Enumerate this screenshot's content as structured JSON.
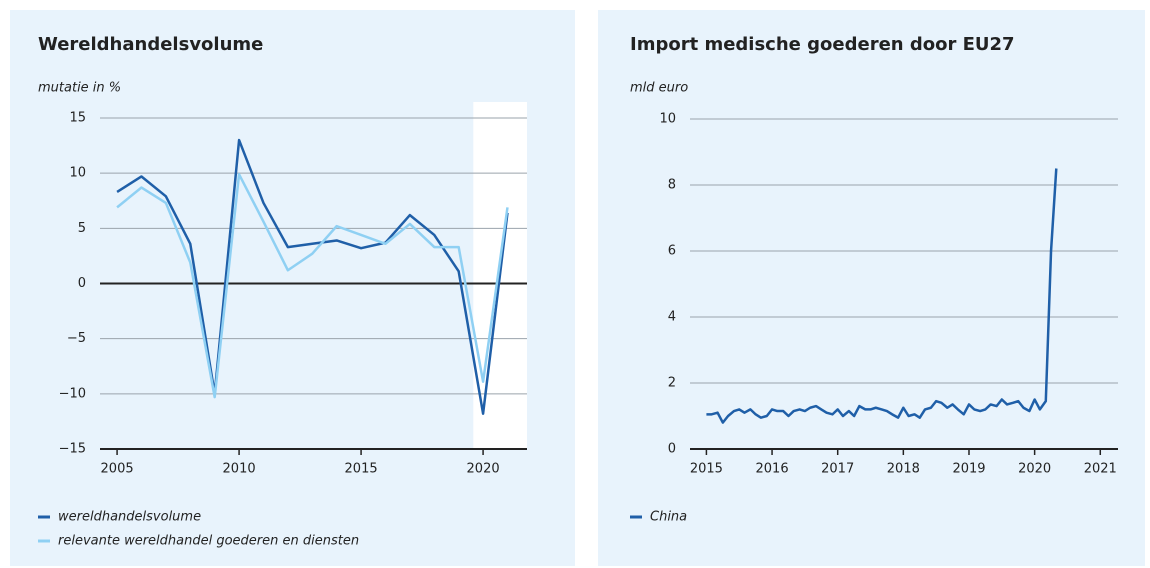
{
  "chart_data": [
    {
      "type": "line",
      "title": "Wereldhandelsvolume",
      "ylabel": "mutatie in %",
      "x": [
        2005,
        2006,
        2007,
        2008,
        2009,
        2010,
        2011,
        2012,
        2013,
        2014,
        2015,
        2016,
        2017,
        2018,
        2019,
        2020,
        2021
      ],
      "series": [
        {
          "name": "wereldhandelsvolume",
          "color": "#1f5fa8",
          "values": [
            8.3,
            9.7,
            7.9,
            3.6,
            -10.0,
            13.0,
            7.3,
            3.3,
            3.6,
            3.9,
            3.2,
            3.7,
            6.2,
            4.4,
            1.1,
            -11.8,
            6.4
          ]
        },
        {
          "name": "relevante wereldhandel goederen en diensten",
          "color": "#8fd0f3",
          "values": [
            6.9,
            8.7,
            7.3,
            1.9,
            -10.3,
            9.9,
            5.6,
            1.2,
            2.7,
            5.2,
            4.4,
            3.6,
            5.4,
            3.3,
            3.3,
            -8.9,
            6.9
          ]
        }
      ],
      "xlim": [
        2004.3,
        2021.8
      ],
      "xticks": [
        2005,
        2010,
        2015,
        2020
      ],
      "ylim": [
        -15,
        15
      ],
      "yticks": [
        {
          "value": -15,
          "label": "−15"
        },
        {
          "value": -10,
          "label": "−10"
        },
        {
          "value": -5,
          "label": "−5"
        },
        0,
        5,
        10,
        15
      ],
      "highlight": [
        2019.6,
        2021.8
      ],
      "grid": true
    },
    {
      "type": "line",
      "title": "Import medische goederen door EU27",
      "ylabel": "mld euro",
      "x": [
        2015.0,
        2015.08,
        2015.17,
        2015.25,
        2015.33,
        2015.42,
        2015.5,
        2015.58,
        2015.67,
        2015.75,
        2015.83,
        2015.92,
        2016.0,
        2016.08,
        2016.17,
        2016.25,
        2016.33,
        2016.42,
        2016.5,
        2016.58,
        2016.67,
        2016.75,
        2016.83,
        2016.92,
        2017.0,
        2017.08,
        2017.17,
        2017.25,
        2017.33,
        2017.42,
        2017.5,
        2017.58,
        2017.67,
        2017.75,
        2017.83,
        2017.92,
        2018.0,
        2018.08,
        2018.17,
        2018.25,
        2018.33,
        2018.42,
        2018.5,
        2018.58,
        2018.67,
        2018.75,
        2018.83,
        2018.92,
        2019.0,
        2019.08,
        2019.17,
        2019.25,
        2019.33,
        2019.42,
        2019.5,
        2019.58,
        2019.67,
        2019.75,
        2019.83,
        2019.92,
        2020.0,
        2020.08,
        2020.17,
        2020.25,
        2020.33
      ],
      "series": [
        {
          "name": "China",
          "color": "#1f5fa8",
          "values": [
            1.05,
            1.05,
            1.1,
            0.8,
            1.0,
            1.15,
            1.2,
            1.1,
            1.2,
            1.05,
            0.95,
            1.0,
            1.2,
            1.15,
            1.15,
            1.0,
            1.15,
            1.2,
            1.15,
            1.25,
            1.3,
            1.2,
            1.1,
            1.05,
            1.2,
            1.0,
            1.15,
            1.0,
            1.3,
            1.2,
            1.2,
            1.25,
            1.2,
            1.15,
            1.05,
            0.95,
            1.25,
            1.0,
            1.05,
            0.95,
            1.2,
            1.25,
            1.45,
            1.4,
            1.25,
            1.35,
            1.2,
            1.05,
            1.35,
            1.2,
            1.15,
            1.2,
            1.35,
            1.3,
            1.5,
            1.35,
            1.4,
            1.45,
            1.25,
            1.15,
            1.5,
            1.2,
            1.45,
            6.0,
            8.5
          ]
        }
      ],
      "xlim": [
        2014.75,
        2021.27
      ],
      "xticks": [
        2015,
        2016,
        2017,
        2018,
        2019,
        2020,
        2021
      ],
      "ylim": [
        0,
        10
      ],
      "yticks": [
        0,
        2,
        4,
        6,
        8,
        10
      ],
      "grid": true
    }
  ]
}
